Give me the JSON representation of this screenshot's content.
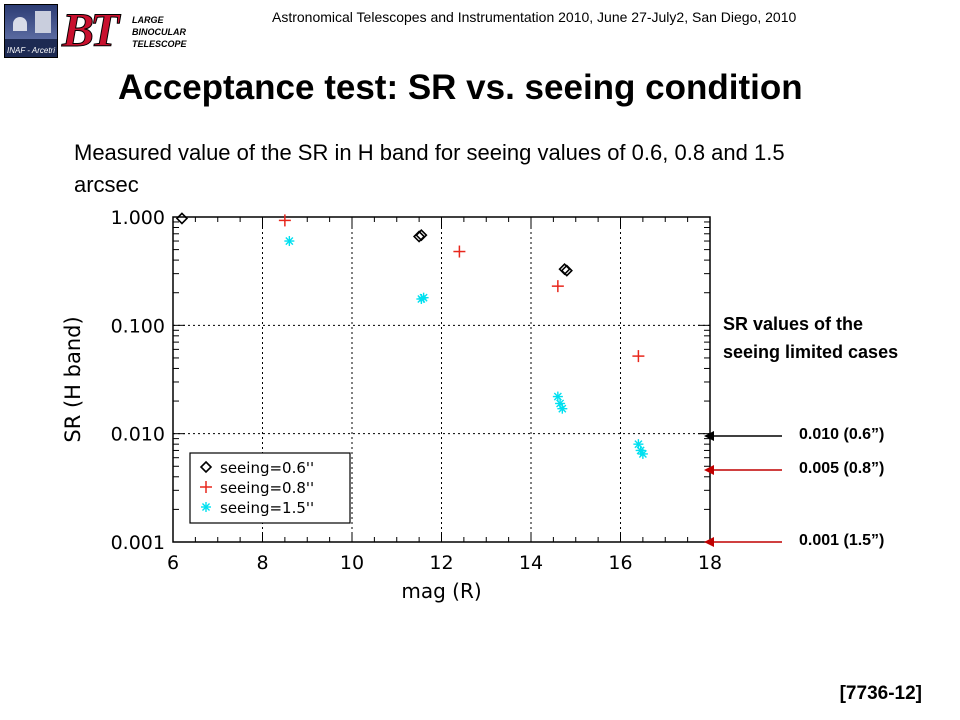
{
  "header": {
    "conference": "Astronomical Telescopes and Instrumentation 2010, June 27-July2, San Diego, 2010",
    "inaf_logo_text": "INAF - Arcetri",
    "lbt_logo": {
      "initials": "BT",
      "word1": "LARGE",
      "word2": "BINOCULAR",
      "word3": "TELESCOPE"
    }
  },
  "slide": {
    "title": "Acceptance test: SR vs. seeing condition",
    "subtitle": "Measured value of the SR in H band for  seeing values of 0.6, 0.8 and 1.5 arcsec",
    "note": "SR values  of the seeing limited cases",
    "references": [
      {
        "label": "0.010 (0.6”)",
        "arrow_color": "#000000"
      },
      {
        "label": "0.005 (0.8”)",
        "arrow_color": "#c00000"
      },
      {
        "label": "0.001 (1.5”)",
        "arrow_color": "#c00000"
      }
    ],
    "code": "[7736-12]"
  },
  "chart_data": {
    "type": "scatter",
    "xlabel": "mag (R)",
    "ylabel": "SR (H band)",
    "xlim": [
      6,
      18
    ],
    "ylim": [
      0.001,
      1.0
    ],
    "y_scale": "log",
    "x_ticks": [
      "6",
      "8",
      "10",
      "12",
      "14",
      "16",
      "18"
    ],
    "y_ticks": [
      "0.001",
      "0.010",
      "0.100",
      "1.000"
    ],
    "grid": "dotted",
    "legend_placement": "bottom-left",
    "series": [
      {
        "name": "seeing=0.6''",
        "marker": "diamond",
        "color": "#000000",
        "points": [
          [
            6.2,
            0.97
          ],
          [
            11.5,
            0.66
          ],
          [
            11.55,
            0.68
          ],
          [
            14.75,
            0.33
          ],
          [
            14.8,
            0.32
          ]
        ]
      },
      {
        "name": "seeing=0.8''",
        "marker": "plus",
        "color": "#e8271c",
        "points": [
          [
            8.5,
            0.93
          ],
          [
            12.4,
            0.48
          ],
          [
            14.6,
            0.23
          ],
          [
            16.4,
            0.052
          ]
        ]
      },
      {
        "name": "seeing=1.5''",
        "marker": "asterisk",
        "color": "#00e0f0",
        "points": [
          [
            8.6,
            0.6
          ],
          [
            11.55,
            0.175
          ],
          [
            11.6,
            0.18
          ],
          [
            14.6,
            0.022
          ],
          [
            14.65,
            0.019
          ],
          [
            14.7,
            0.017
          ],
          [
            16.4,
            0.008
          ],
          [
            16.45,
            0.007
          ],
          [
            16.5,
            0.0065
          ]
        ]
      }
    ]
  }
}
